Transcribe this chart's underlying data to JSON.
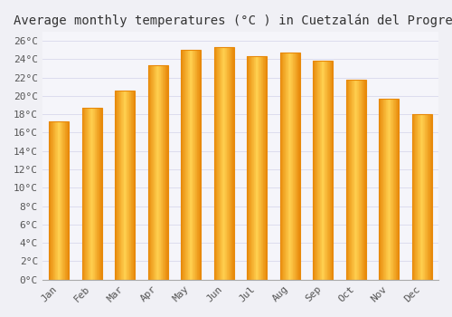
{
  "title": "Average monthly temperatures (°C ) in Cuetzalán del Progreso",
  "months": [
    "Jan",
    "Feb",
    "Mar",
    "Apr",
    "May",
    "Jun",
    "Jul",
    "Aug",
    "Sep",
    "Oct",
    "Nov",
    "Dec"
  ],
  "values": [
    17.2,
    18.7,
    20.6,
    23.3,
    25.0,
    25.3,
    24.3,
    24.7,
    23.8,
    21.8,
    19.7,
    18.0
  ],
  "bar_color_center": "#FFD050",
  "bar_color_edge": "#E8890A",
  "background_color": "#F0F0F5",
  "grid_color": "#DDDDEE",
  "plot_bg_color": "#F5F5FA",
  "ytick_labels": [
    "0°C",
    "2°C",
    "4°C",
    "6°C",
    "8°C",
    "10°C",
    "12°C",
    "14°C",
    "16°C",
    "18°C",
    "20°C",
    "22°C",
    "24°C",
    "26°C"
  ],
  "ytick_values": [
    0,
    2,
    4,
    6,
    8,
    10,
    12,
    14,
    16,
    18,
    20,
    22,
    24,
    26
  ],
  "ylim": [
    0,
    27
  ],
  "font_family": "monospace",
  "title_fontsize": 10,
  "tick_fontsize": 8,
  "bar_width": 0.6
}
